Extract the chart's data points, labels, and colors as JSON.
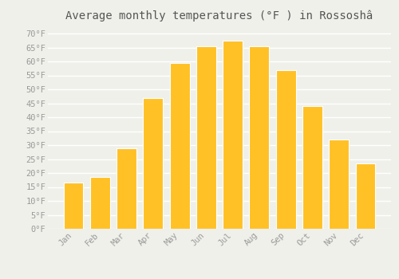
{
  "title": "Average monthly temperatures (°F ) in Rossoshâ",
  "months": [
    "Jan",
    "Feb",
    "Mar",
    "Apr",
    "May",
    "Jun",
    "Jul",
    "Aug",
    "Sep",
    "Oct",
    "Nov",
    "Dec"
  ],
  "values": [
    16.5,
    18.5,
    29,
    47,
    59.5,
    65.5,
    67.5,
    65.5,
    57,
    44,
    32,
    23.5
  ],
  "bar_color": "#FFC125",
  "bar_edge_color": "#FFFFFF",
  "background_color": "#F0F0EB",
  "plot_bg_color": "#F0F0EB",
  "grid_color": "#FFFFFF",
  "ylim": [
    0,
    72
  ],
  "yticks": [
    0,
    5,
    10,
    15,
    20,
    25,
    30,
    35,
    40,
    45,
    50,
    55,
    60,
    65,
    70
  ],
  "tick_label_color": "#999999",
  "title_color": "#555555",
  "title_fontsize": 10,
  "tick_fontsize": 7.5,
  "bar_width": 0.75
}
